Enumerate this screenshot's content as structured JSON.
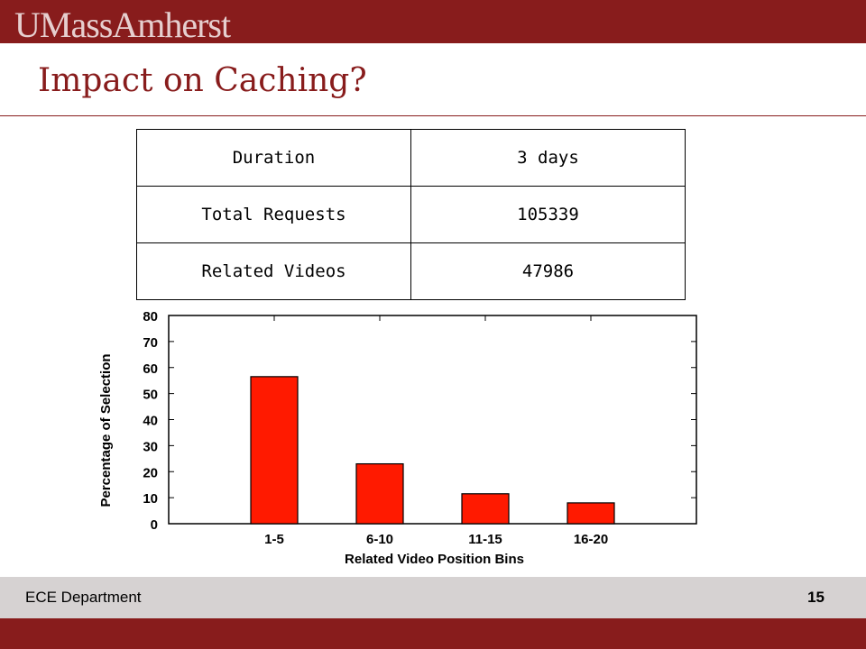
{
  "header": {
    "logo_text": "UMassAmherst",
    "title": "Impact on Caching?"
  },
  "stats_table": {
    "rows": [
      {
        "label": "Duration",
        "value": "3 days"
      },
      {
        "label": "Total Requests",
        "value": "105339"
      },
      {
        "label": "Related Videos",
        "value": "47986"
      }
    ]
  },
  "chart_data": {
    "type": "bar",
    "categories": [
      "1-5",
      "6-10",
      "11-15",
      "16-20"
    ],
    "values": [
      56.5,
      23,
      11.5,
      8
    ],
    "xlabel": "Related Video Position Bins",
    "ylabel": "Percentage of Selection",
    "ylim": [
      0,
      80
    ],
    "yticks": [
      0,
      10,
      20,
      30,
      40,
      50,
      60,
      70,
      80
    ],
    "bar_color": "#ff1a00",
    "grid": false
  },
  "footer": {
    "department": "ECE Department",
    "page_number": "15"
  },
  "colors": {
    "brand": "#881c1c",
    "footer_bg": "#d6d2d2"
  }
}
